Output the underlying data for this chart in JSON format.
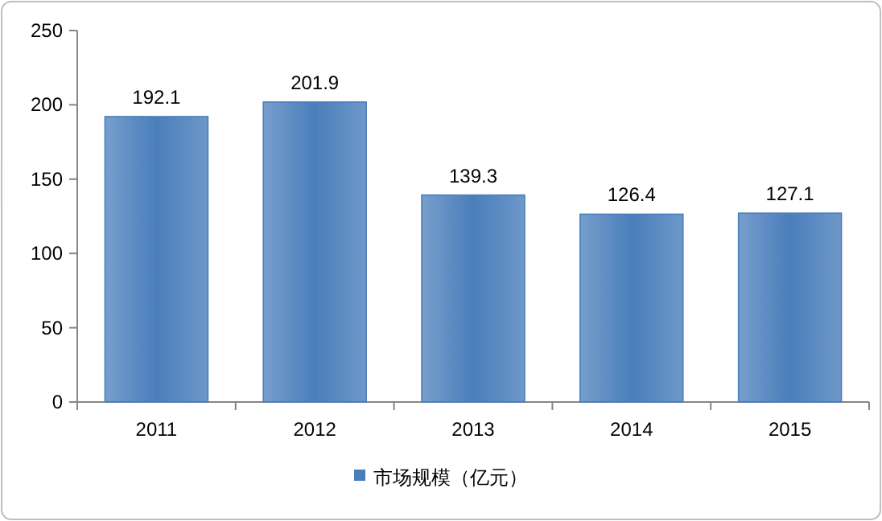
{
  "chart_data": {
    "type": "bar",
    "categories": [
      "2011",
      "2012",
      "2013",
      "2014",
      "2015"
    ],
    "series": [
      {
        "name": "市场规模（亿元）",
        "color": "#4a7ebb",
        "values": [
          192.1,
          201.9,
          139.3,
          126.4,
          127.1
        ]
      }
    ],
    "ylim": [
      0,
      250
    ],
    "yticks": [
      0,
      50,
      100,
      150,
      200,
      250
    ],
    "data_labels": true,
    "legend": "bottom"
  }
}
